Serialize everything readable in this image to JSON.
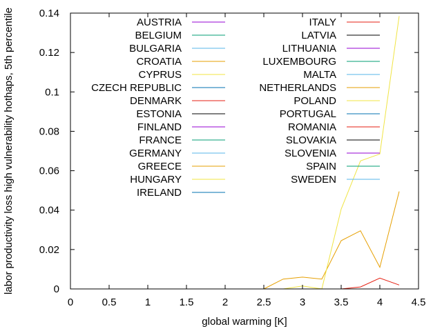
{
  "chart_data": {
    "type": "line",
    "title": "",
    "xlabel": "global warming [K]",
    "ylabel": "labor productivity loss high vulnerability hothaps, 5th percentile",
    "xlim": [
      0,
      4.5
    ],
    "ylim": [
      0,
      0.14
    ],
    "x_ticks": [
      "0",
      "0.5",
      "1",
      "1.5",
      "2",
      "2.5",
      "3",
      "3.5",
      "4",
      "4.5"
    ],
    "y_ticks": [
      "0",
      "0.02",
      "0.04",
      "0.06",
      "0.08",
      "0.1",
      "0.12",
      "0.14"
    ],
    "grid": false,
    "legend_placement": "top, two columns",
    "x": [
      2.5,
      2.75,
      3.0,
      3.25,
      3.5,
      3.75,
      4.0,
      4.25
    ],
    "series": [
      {
        "name": "AUSTRIA",
        "color": "#9400d3",
        "values": [
          0,
          0,
          0,
          0,
          0,
          0,
          0,
          0
        ]
      },
      {
        "name": "BELGIUM",
        "color": "#009e73",
        "values": [
          0,
          0,
          0,
          0,
          0,
          0,
          0,
          0
        ]
      },
      {
        "name": "BULGARIA",
        "color": "#56b4e9",
        "values": [
          0,
          0,
          0,
          0,
          0,
          0,
          0,
          0
        ]
      },
      {
        "name": "CROATIA",
        "color": "#e69f00",
        "values": [
          0,
          0,
          0,
          0,
          0,
          0,
          0,
          0
        ]
      },
      {
        "name": "CYPRUS",
        "color": "#f0e442",
        "values": [
          0,
          0,
          0,
          0,
          0,
          0,
          0,
          0
        ]
      },
      {
        "name": "CZECH REPUBLIC",
        "color": "#0072b2",
        "values": [
          0,
          0,
          0,
          0,
          0,
          0,
          0,
          0
        ]
      },
      {
        "name": "DENMARK",
        "color": "#e51e10",
        "values": [
          0,
          0,
          0,
          0,
          0,
          0,
          0,
          0
        ]
      },
      {
        "name": "ESTONIA",
        "color": "#000000",
        "values": [
          0,
          0,
          0,
          0,
          0,
          0,
          0,
          0
        ]
      },
      {
        "name": "FINLAND",
        "color": "#9400d3",
        "values": [
          0,
          0,
          0,
          0,
          0,
          0,
          0,
          0
        ]
      },
      {
        "name": "FRANCE",
        "color": "#009e73",
        "values": [
          0,
          0,
          0,
          0,
          0,
          0,
          0,
          0
        ]
      },
      {
        "name": "GERMANY",
        "color": "#56b4e9",
        "values": [
          0,
          0,
          0,
          0,
          0,
          0,
          0,
          0
        ]
      },
      {
        "name": "GREECE",
        "color": "#e69f00",
        "values": [
          0,
          0.005,
          0.006,
          0.005,
          0.0245,
          0.0295,
          0.011,
          0.0495
        ]
      },
      {
        "name": "HUNGARY",
        "color": "#f0e442",
        "values": [
          0,
          0,
          0.0015,
          0,
          0.0405,
          0.065,
          0.0685,
          0.1385
        ]
      },
      {
        "name": "IRELAND",
        "color": "#0072b2",
        "values": [
          0,
          0,
          0,
          0,
          0,
          0,
          0,
          0
        ]
      },
      {
        "name": "ITALY",
        "color": "#e51e10",
        "values": [
          0,
          0,
          0,
          0,
          0,
          0.001,
          0.0055,
          0.002
        ]
      },
      {
        "name": "LATVIA",
        "color": "#000000",
        "values": [
          0,
          0,
          0,
          0,
          0,
          0,
          0,
          0
        ]
      },
      {
        "name": "LITHUANIA",
        "color": "#9400d3",
        "values": [
          0,
          0,
          0,
          0,
          0,
          0,
          0,
          0
        ]
      },
      {
        "name": "LUXEMBOURG",
        "color": "#009e73",
        "values": [
          0,
          0,
          0,
          0,
          0,
          0,
          0,
          0
        ]
      },
      {
        "name": "MALTA",
        "color": "#56b4e9",
        "values": [
          0,
          0,
          0,
          0,
          0,
          0,
          0,
          0
        ]
      },
      {
        "name": "NETHERLANDS",
        "color": "#e69f00",
        "values": [
          0,
          0,
          0,
          0,
          0,
          0,
          0,
          0
        ]
      },
      {
        "name": "POLAND",
        "color": "#f0e442",
        "values": [
          0,
          0,
          0,
          0,
          0,
          0,
          0,
          0
        ]
      },
      {
        "name": "PORTUGAL",
        "color": "#0072b2",
        "values": [
          0,
          0,
          0,
          0,
          0,
          0,
          0,
          0
        ]
      },
      {
        "name": "ROMANIA",
        "color": "#e51e10",
        "values": [
          0,
          0,
          0,
          0,
          0,
          0,
          0,
          0
        ]
      },
      {
        "name": "SLOVAKIA",
        "color": "#000000",
        "values": [
          0,
          0,
          0,
          0,
          0,
          0,
          0,
          0
        ]
      },
      {
        "name": "SLOVENIA",
        "color": "#9400d3",
        "values": [
          0,
          0,
          0,
          0,
          0,
          0,
          0,
          0
        ]
      },
      {
        "name": "SPAIN",
        "color": "#009e73",
        "values": [
          0,
          0,
          0,
          0,
          0,
          0,
          0,
          0
        ]
      },
      {
        "name": "SWEDEN",
        "color": "#56b4e9",
        "values": [
          0,
          0,
          0,
          0,
          0,
          0,
          0,
          0
        ]
      }
    ]
  }
}
